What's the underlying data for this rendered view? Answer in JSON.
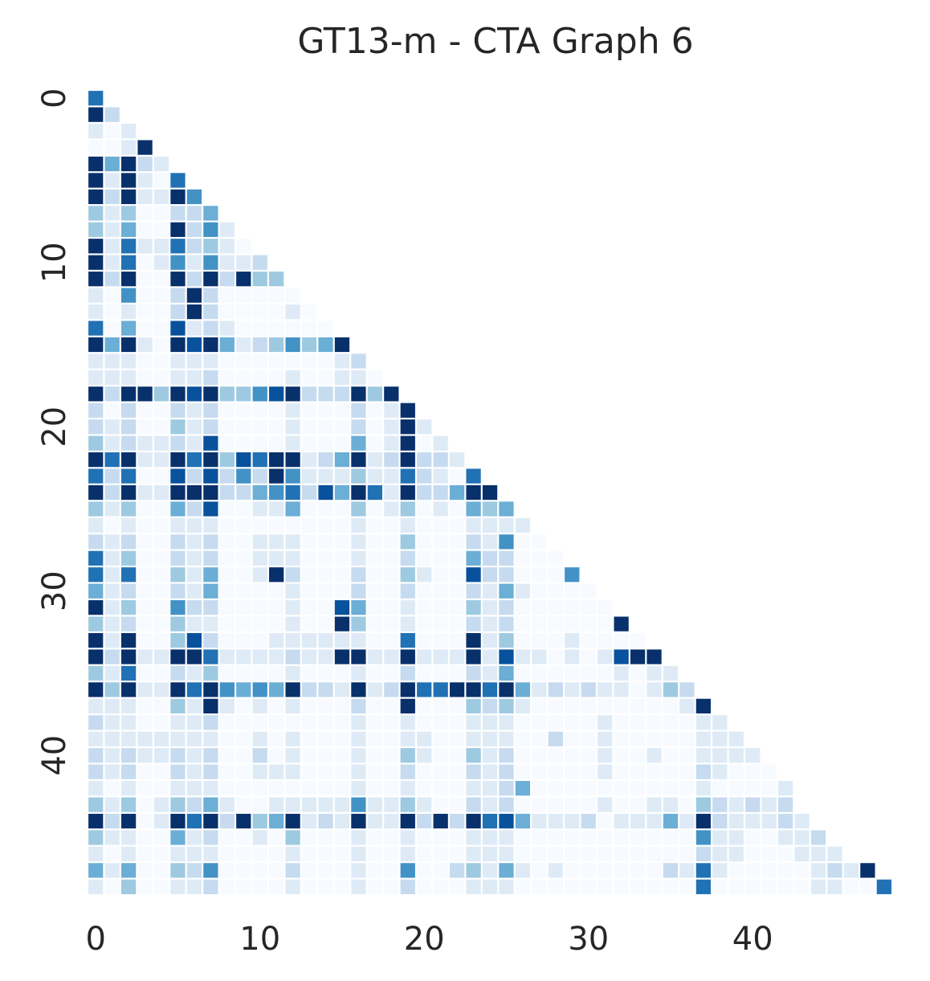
{
  "chart_data": {
    "type": "heatmap",
    "title": "GT13-m - CTA Graph 6",
    "xlabel": "",
    "ylabel": "",
    "size": 49,
    "mask": "upper-triangle",
    "colormap": "Blues",
    "color_scale": [
      "#f7fbff",
      "#deebf7",
      "#c6dbef",
      "#9ecae1",
      "#6baed6",
      "#4292c6",
      "#2171b5",
      "#08519c",
      "#08306b"
    ],
    "vmin": 0,
    "vmax": 8,
    "x_ticks": [
      0,
      10,
      20,
      30,
      40
    ],
    "y_ticks": [
      0,
      10,
      20,
      30,
      40
    ],
    "colorbar": false,
    "grid": false,
    "rows": [
      [
        6
      ],
      [
        8,
        2
      ],
      [
        1,
        0,
        1
      ],
      [
        0,
        0,
        1,
        8
      ],
      [
        8,
        4,
        8,
        2,
        1
      ],
      [
        8,
        1,
        8,
        1,
        0,
        6
      ],
      [
        8,
        2,
        8,
        1,
        1,
        8,
        5
      ],
      [
        3,
        1,
        3,
        0,
        0,
        2,
        2,
        4
      ],
      [
        3,
        1,
        4,
        0,
        0,
        8,
        2,
        5,
        1
      ],
      [
        8,
        1,
        6,
        1,
        1,
        6,
        2,
        3,
        1,
        0
      ],
      [
        8,
        1,
        6,
        0,
        1,
        5,
        1,
        5,
        1,
        1,
        2
      ],
      [
        8,
        2,
        8,
        0,
        0,
        8,
        2,
        8,
        2,
        8,
        3,
        3
      ],
      [
        1,
        0,
        5,
        0,
        0,
        2,
        8,
        2,
        0,
        0,
        0,
        0,
        0
      ],
      [
        1,
        0,
        1,
        0,
        0,
        2,
        8,
        2,
        0,
        0,
        0,
        0,
        1,
        0
      ],
      [
        6,
        0,
        4,
        0,
        0,
        7,
        1,
        2,
        1,
        0,
        0,
        0,
        0,
        0,
        0
      ],
      [
        8,
        4,
        8,
        1,
        0,
        8,
        7,
        8,
        4,
        1,
        2,
        3,
        5,
        3,
        4,
        8
      ],
      [
        1,
        1,
        1,
        0,
        0,
        1,
        1,
        1,
        0,
        0,
        0,
        0,
        0,
        0,
        0,
        1,
        2
      ],
      [
        1,
        1,
        1,
        0,
        0,
        1,
        1,
        2,
        0,
        0,
        0,
        0,
        1,
        0,
        0,
        1,
        1,
        0
      ],
      [
        8,
        2,
        8,
        8,
        3,
        8,
        7,
        8,
        3,
        3,
        5,
        7,
        8,
        2,
        2,
        2,
        8,
        3,
        8
      ],
      [
        2,
        0,
        2,
        0,
        0,
        2,
        1,
        2,
        0,
        0,
        0,
        0,
        1,
        0,
        0,
        0,
        2,
        0,
        1,
        8
      ],
      [
        2,
        1,
        2,
        0,
        0,
        3,
        1,
        2,
        0,
        0,
        0,
        0,
        1,
        0,
        0,
        0,
        2,
        0,
        1,
        8,
        1
      ],
      [
        3,
        1,
        2,
        1,
        1,
        2,
        1,
        7,
        0,
        0,
        0,
        0,
        1,
        0,
        0,
        0,
        4,
        0,
        1,
        8,
        0,
        1
      ],
      [
        8,
        6,
        8,
        1,
        1,
        8,
        6,
        8,
        3,
        7,
        6,
        8,
        8,
        1,
        2,
        4,
        8,
        1,
        2,
        8,
        2,
        2,
        1
      ],
      [
        6,
        2,
        6,
        0,
        0,
        7,
        2,
        7,
        2,
        5,
        2,
        8,
        5,
        1,
        1,
        1,
        3,
        1,
        1,
        6,
        2,
        1,
        0,
        6
      ],
      [
        8,
        2,
        8,
        1,
        1,
        8,
        8,
        8,
        2,
        2,
        4,
        5,
        6,
        2,
        7,
        4,
        8,
        6,
        1,
        8,
        2,
        2,
        4,
        8,
        8
      ],
      [
        3,
        1,
        3,
        0,
        0,
        4,
        2,
        7,
        0,
        0,
        1,
        1,
        4,
        0,
        0,
        0,
        3,
        0,
        1,
        3,
        0,
        1,
        0,
        4,
        3,
        4
      ],
      [
        1,
        0,
        1,
        0,
        0,
        1,
        1,
        1,
        0,
        0,
        0,
        0,
        0,
        0,
        0,
        0,
        1,
        0,
        0,
        1,
        0,
        0,
        0,
        1,
        1,
        1,
        1
      ],
      [
        2,
        1,
        2,
        0,
        0,
        2,
        1,
        2,
        0,
        0,
        1,
        1,
        1,
        0,
        0,
        0,
        1,
        0,
        0,
        3,
        0,
        0,
        0,
        2,
        1,
        5,
        0,
        0
      ],
      [
        6,
        1,
        3,
        0,
        0,
        2,
        1,
        2,
        0,
        0,
        1,
        1,
        1,
        0,
        0,
        0,
        1,
        0,
        0,
        2,
        0,
        0,
        0,
        4,
        2,
        2,
        0,
        0,
        0
      ],
      [
        6,
        1,
        6,
        0,
        0,
        3,
        1,
        4,
        0,
        0,
        1,
        8,
        2,
        0,
        0,
        0,
        2,
        0,
        0,
        3,
        1,
        0,
        0,
        7,
        2,
        2,
        0,
        0,
        0,
        5
      ],
      [
        4,
        1,
        2,
        0,
        0,
        2,
        1,
        4,
        0,
        0,
        0,
        0,
        1,
        0,
        0,
        0,
        2,
        0,
        0,
        2,
        0,
        0,
        0,
        2,
        1,
        4,
        1,
        0,
        0,
        0,
        0
      ],
      [
        8,
        1,
        3,
        0,
        0,
        5,
        2,
        2,
        0,
        0,
        0,
        0,
        1,
        0,
        0,
        7,
        4,
        0,
        0,
        1,
        0,
        0,
        0,
        3,
        1,
        2,
        0,
        0,
        0,
        0,
        0,
        0
      ],
      [
        3,
        1,
        2,
        0,
        0,
        3,
        1,
        1,
        0,
        0,
        0,
        0,
        1,
        0,
        0,
        8,
        3,
        0,
        0,
        1,
        0,
        0,
        0,
        2,
        1,
        2,
        0,
        0,
        0,
        0,
        0,
        0,
        8
      ],
      [
        8,
        1,
        8,
        0,
        0,
        3,
        7,
        2,
        0,
        0,
        0,
        1,
        1,
        1,
        1,
        1,
        1,
        0,
        0,
        6,
        0,
        0,
        0,
        8,
        1,
        3,
        0,
        0,
        0,
        1,
        0,
        0,
        0,
        0
      ],
      [
        8,
        2,
        8,
        1,
        1,
        8,
        8,
        6,
        1,
        1,
        1,
        1,
        2,
        1,
        1,
        8,
        8,
        1,
        1,
        8,
        1,
        1,
        1,
        8,
        1,
        7,
        1,
        1,
        0,
        1,
        0,
        1,
        7,
        8,
        8
      ],
      [
        3,
        1,
        6,
        0,
        0,
        2,
        1,
        3,
        0,
        0,
        0,
        0,
        1,
        0,
        0,
        0,
        1,
        0,
        0,
        2,
        0,
        0,
        0,
        2,
        1,
        4,
        0,
        0,
        0,
        0,
        0,
        0,
        1,
        0,
        1,
        1
      ],
      [
        8,
        3,
        8,
        1,
        1,
        8,
        6,
        8,
        5,
        4,
        5,
        4,
        8,
        2,
        2,
        1,
        8,
        1,
        2,
        8,
        6,
        6,
        8,
        8,
        6,
        8,
        4,
        1,
        2,
        1,
        2,
        1,
        1,
        0,
        1,
        3,
        2
      ],
      [
        1,
        1,
        1,
        0,
        0,
        3,
        1,
        8,
        1,
        0,
        1,
        0,
        1,
        0,
        0,
        0,
        2,
        0,
        0,
        8,
        0,
        0,
        0,
        3,
        2,
        3,
        1,
        0,
        0,
        0,
        0,
        0,
        0,
        0,
        0,
        0,
        1,
        8
      ],
      [
        2,
        1,
        1,
        0,
        0,
        1,
        1,
        2,
        0,
        0,
        0,
        0,
        0,
        0,
        0,
        0,
        1,
        0,
        0,
        1,
        0,
        0,
        0,
        1,
        1,
        1,
        0,
        0,
        0,
        0,
        0,
        1,
        0,
        0,
        0,
        0,
        0,
        1,
        1
      ],
      [
        1,
        1,
        1,
        1,
        1,
        1,
        1,
        1,
        0,
        0,
        1,
        0,
        1,
        0,
        0,
        0,
        1,
        0,
        0,
        1,
        1,
        0,
        0,
        1,
        1,
        1,
        0,
        0,
        2,
        0,
        0,
        1,
        0,
        0,
        0,
        0,
        0,
        1,
        1,
        1
      ],
      [
        2,
        1,
        2,
        1,
        1,
        2,
        1,
        2,
        0,
        0,
        2,
        0,
        1,
        0,
        0,
        0,
        1,
        0,
        0,
        3,
        1,
        0,
        0,
        3,
        1,
        2,
        0,
        0,
        0,
        0,
        0,
        1,
        0,
        0,
        1,
        0,
        0,
        1,
        1,
        1,
        1
      ],
      [
        2,
        1,
        2,
        0,
        0,
        2,
        1,
        2,
        0,
        0,
        1,
        1,
        1,
        0,
        0,
        0,
        1,
        0,
        0,
        2,
        0,
        0,
        0,
        2,
        1,
        2,
        0,
        0,
        0,
        0,
        0,
        1,
        0,
        0,
        0,
        0,
        0,
        2,
        1,
        0,
        0,
        0
      ],
      [
        1,
        0,
        1,
        0,
        0,
        1,
        1,
        1,
        0,
        0,
        0,
        0,
        0,
        0,
        0,
        0,
        1,
        0,
        0,
        1,
        0,
        0,
        0,
        1,
        1,
        2,
        4,
        0,
        0,
        0,
        0,
        0,
        0,
        0,
        0,
        0,
        0,
        1,
        0,
        0,
        0,
        0,
        1
      ],
      [
        3,
        1,
        3,
        0,
        1,
        3,
        2,
        4,
        1,
        0,
        0,
        1,
        1,
        1,
        1,
        1,
        5,
        1,
        1,
        3,
        1,
        0,
        0,
        2,
        1,
        2,
        0,
        0,
        0,
        0,
        0,
        1,
        0,
        0,
        1,
        1,
        0,
        3,
        2,
        1,
        2,
        1,
        2
      ],
      [
        8,
        2,
        8,
        0,
        1,
        8,
        6,
        8,
        2,
        8,
        3,
        4,
        8,
        1,
        2,
        1,
        8,
        1,
        1,
        8,
        2,
        8,
        2,
        8,
        6,
        7,
        4,
        1,
        1,
        1,
        2,
        0,
        1,
        1,
        1,
        4,
        1,
        8,
        2,
        1,
        1,
        1,
        2,
        1
      ],
      [
        3,
        1,
        1,
        0,
        0,
        4,
        1,
        2,
        0,
        0,
        1,
        0,
        3,
        0,
        0,
        0,
        1,
        0,
        0,
        1,
        0,
        0,
        0,
        1,
        1,
        1,
        0,
        0,
        0,
        0,
        0,
        0,
        0,
        0,
        0,
        0,
        0,
        5,
        1,
        1,
        0,
        0,
        1,
        1,
        2
      ],
      [
        1,
        0,
        1,
        0,
        0,
        1,
        1,
        1,
        0,
        0,
        0,
        0,
        1,
        0,
        0,
        0,
        1,
        0,
        0,
        1,
        0,
        0,
        0,
        1,
        1,
        1,
        0,
        0,
        0,
        0,
        0,
        0,
        0,
        0,
        0,
        0,
        0,
        2,
        1,
        1,
        0,
        0,
        0,
        1,
        1,
        1
      ],
      [
        4,
        1,
        4,
        0,
        0,
        3,
        2,
        5,
        0,
        0,
        0,
        0,
        2,
        0,
        0,
        0,
        1,
        0,
        0,
        5,
        0,
        0,
        2,
        3,
        1,
        4,
        1,
        0,
        1,
        0,
        0,
        0,
        0,
        0,
        0,
        2,
        1,
        6,
        1,
        0,
        0,
        0,
        0,
        0,
        1,
        2,
        1,
        8
      ],
      [
        1,
        0,
        3,
        0,
        0,
        1,
        1,
        2,
        0,
        0,
        0,
        0,
        1,
        0,
        0,
        0,
        1,
        0,
        0,
        2,
        0,
        0,
        0,
        1,
        1,
        1,
        0,
        0,
        0,
        0,
        0,
        0,
        0,
        0,
        0,
        0,
        0,
        6,
        0,
        0,
        0,
        0,
        0,
        0,
        1,
        1,
        0,
        0,
        6
      ]
    ]
  }
}
